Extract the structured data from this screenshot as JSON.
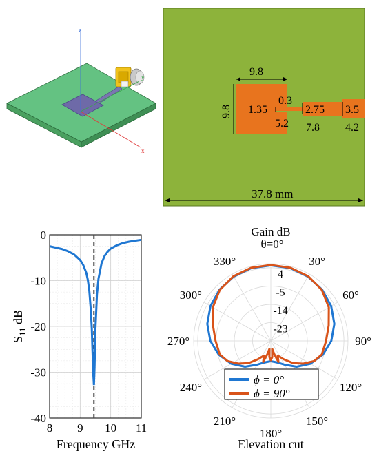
{
  "iso_view": {
    "axis_z": "z",
    "axis_y": "y",
    "axis_x": "x"
  },
  "layout_view": {
    "dims": {
      "patch_width": "9.8",
      "patch_height": "9.8",
      "gap": "0.3",
      "inset_depth": "1.35",
      "inset_length": "5.2",
      "line1_width": "2.75",
      "line1_length": "7.8",
      "line2_width": "3.5",
      "line2_length": "4.2",
      "board_width": "37.8 mm"
    },
    "colors": {
      "board": "#8db33b",
      "patch": "#e8741e"
    }
  },
  "chart_data": [
    {
      "type": "line",
      "xlabel": "Frequency GHz",
      "ylabel_main": "S",
      "ylabel_sub": "11",
      "ylabel_unit": "dB",
      "xlim": [
        8,
        11
      ],
      "ylim": [
        -40,
        0
      ],
      "x_ticks": [
        8,
        9,
        10,
        11
      ],
      "y_ticks": [
        0,
        -10,
        -20,
        -30,
        -40
      ],
      "x_tick_labels": [
        "8",
        "9",
        "10",
        "11"
      ],
      "y_tick_labels": [
        "0",
        "-10",
        "-20",
        "-30",
        "-40"
      ],
      "marker_x": 9.45,
      "grid": true,
      "color": "#1f77d2",
      "x": [
        8.0,
        8.2,
        8.4,
        8.6,
        8.8,
        9.0,
        9.1,
        9.2,
        9.25,
        9.3,
        9.35,
        9.38,
        9.41,
        9.43,
        9.45,
        9.47,
        9.5,
        9.55,
        9.6,
        9.7,
        9.8,
        9.9,
        10.0,
        10.2,
        10.4,
        10.6,
        10.8,
        11.0
      ],
      "y": [
        -2.5,
        -2.8,
        -3.1,
        -3.6,
        -4.3,
        -5.5,
        -6.6,
        -8.3,
        -9.8,
        -12.2,
        -16.5,
        -20.5,
        -26.5,
        -30.5,
        -32.8,
        -29.0,
        -20.5,
        -13.0,
        -9.6,
        -6.2,
        -4.6,
        -3.7,
        -3.0,
        -2.3,
        -1.8,
        -1.5,
        -1.3,
        -1.1
      ]
    },
    {
      "type": "polar",
      "title": "Gain dB",
      "subtitle": "θ=0°",
      "caption": "Elevation cut",
      "r_ticks": [
        4,
        -5,
        -14,
        -23
      ],
      "r_tick_labels": [
        "4",
        "-5",
        "-14",
        "-23"
      ],
      "r_min": -32,
      "r_max": 6,
      "angle_labels": [
        "330°",
        "30°",
        "300°",
        "60°",
        "270°",
        "90°",
        "240°",
        "120°",
        "210°",
        "180°",
        "150°"
      ],
      "angle_values": [
        330,
        30,
        300,
        60,
        270,
        90,
        240,
        120,
        210,
        180,
        150
      ],
      "legend_location": "bottom-left",
      "series": [
        {
          "name": "ϕ =  0°",
          "color": "#1f77d2",
          "angles": [
            0,
            15,
            30,
            45,
            60,
            75,
            90,
            105,
            120,
            135,
            150,
            160,
            170,
            180,
            190,
            200,
            210,
            225,
            240,
            255,
            270,
            285,
            300,
            315,
            330,
            345
          ],
          "gains": [
            5.2,
            5.1,
            4.6,
            3.7,
            2.3,
            0.4,
            -2.2,
            -5.5,
            -9.5,
            -14.0,
            -18.5,
            -20.5,
            -21.5,
            -22.0,
            -21.5,
            -20.5,
            -18.5,
            -14.0,
            -9.5,
            -5.5,
            -2.2,
            0.4,
            2.3,
            3.7,
            4.6,
            5.1
          ]
        },
        {
          "name": "ϕ = 90°",
          "color": "#d95319",
          "angles": [
            0,
            15,
            30,
            45,
            60,
            75,
            90,
            105,
            115,
            125,
            135,
            145,
            155,
            160,
            165,
            170,
            175,
            180,
            185,
            190,
            195,
            200,
            205,
            215,
            225,
            235,
            245,
            255,
            270,
            285,
            300,
            315,
            330,
            345
          ],
          "gains": [
            5.4,
            5.3,
            4.8,
            3.5,
            1.0,
            -2.5,
            -4.8,
            -6.0,
            -8.5,
            -12.5,
            -16.5,
            -21.0,
            -24.0,
            -21.0,
            -25.0,
            -28.0,
            -24.0,
            -22.5,
            -24.0,
            -28.0,
            -25.0,
            -21.0,
            -24.0,
            -21.0,
            -16.5,
            -12.5,
            -8.5,
            -6.0,
            -4.8,
            -2.5,
            1.0,
            3.5,
            4.8,
            5.3
          ]
        }
      ]
    }
  ]
}
